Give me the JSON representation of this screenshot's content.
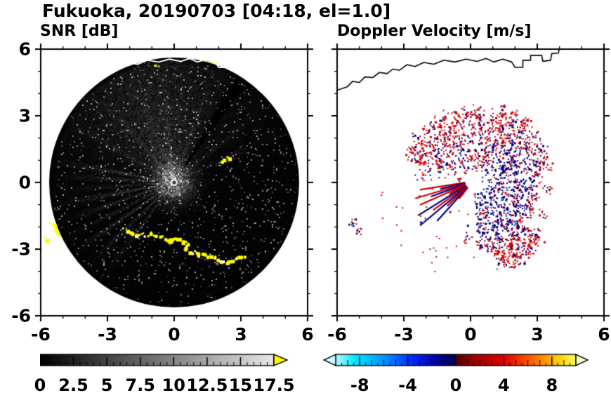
{
  "title": "Fukuoka, 20190703 [04:18, el=1.0]",
  "panels": {
    "snr": {
      "title": "SNR [dB]"
    },
    "doppler": {
      "title": "Doppler Velocity [m/s]"
    }
  },
  "chart_data": [
    {
      "type": "heatmap",
      "subtype": "radar-ppi-scan",
      "title": "SNR [dB]",
      "xlim": [
        -6,
        6
      ],
      "ylim": [
        -6,
        6
      ],
      "xticks": [
        -6,
        -3,
        0,
        3,
        6
      ],
      "yticks": [
        6,
        3,
        0,
        -3,
        -6
      ],
      "minor_tick_step": 1,
      "scan_center": [
        0,
        0
      ],
      "scan_radius": 5.62,
      "beam_ray_azimuths": [
        170,
        177,
        184,
        191,
        199,
        207,
        215,
        224,
        233,
        150,
        130,
        112,
        96,
        70,
        40,
        25
      ],
      "dark_ray_azimuth": 57,
      "colorbar": {
        "min": 0,
        "max": 17.5,
        "tick_labels": [
          0,
          2.5,
          5,
          7.5,
          10,
          12.5,
          15,
          17.5
        ],
        "minor_tick_step": 0.5,
        "scale": "grayscale",
        "start_color": "#000000",
        "end_color": "#e8e8e8",
        "over_arrow_color": "#ffff00"
      },
      "features": {
        "strong_echo_arc": [
          [
            -2.3,
            -2.05
          ],
          [
            -1.9,
            -2.25
          ],
          [
            -1.45,
            -2.35
          ],
          [
            -1.05,
            -2.25
          ],
          [
            -0.6,
            -2.45
          ],
          [
            -0.2,
            -2.55
          ],
          [
            0.2,
            -2.5
          ],
          [
            0.55,
            -2.75
          ],
          [
            0.5,
            -3.05
          ],
          [
            0.9,
            -3.1
          ],
          [
            1.3,
            -3.25
          ],
          [
            1.75,
            -3.3
          ],
          [
            2.1,
            -3.55
          ],
          [
            2.5,
            -3.5
          ],
          [
            2.85,
            -3.35
          ],
          [
            3.1,
            -3.3
          ]
        ],
        "left_edge_echoes": [
          [
            [
              -5.55,
              -1.75
            ],
            [
              -5.4,
              -2.0
            ],
            [
              -5.25,
              -2.3
            ]
          ],
          [
            [
              -5.95,
              -2.35
            ],
            [
              -5.8,
              -2.6
            ]
          ]
        ],
        "upper_echo_dash": [
          [
            2.1,
            1.05
          ],
          [
            2.45,
            1.2
          ]
        ],
        "top_specks": [
          [
            -0.9,
            5.3
          ],
          [
            1.3,
            5.55
          ],
          [
            1.7,
            5.45
          ]
        ]
      }
    },
    {
      "type": "heatmap",
      "subtype": "radar-ppi-scan",
      "title": "Doppler Velocity [m/s]",
      "xlim": [
        -6,
        6
      ],
      "ylim": [
        -6,
        6
      ],
      "xticks": [
        -6,
        -3,
        0,
        3,
        6
      ],
      "yticks": [
        6,
        3,
        0,
        -3,
        -6
      ],
      "minor_tick_step": 1,
      "colorbar": {
        "min": -10,
        "max": 10,
        "tick_labels": [
          -8,
          -4,
          0,
          4,
          8
        ],
        "minor_tick_step": 0.5,
        "under_arrow_color": "#ccffff",
        "over_arrow_color": "#ffffcc",
        "gradient": [
          [
            0.0,
            "#b8f8ff"
          ],
          [
            0.08,
            "#00e6ff"
          ],
          [
            0.2,
            "#0096ff"
          ],
          [
            0.32,
            "#0028ff"
          ],
          [
            0.42,
            "#0000a0"
          ],
          [
            0.499,
            "#000050"
          ],
          [
            0.501,
            "#500000"
          ],
          [
            0.58,
            "#a00000"
          ],
          [
            0.7,
            "#e00000"
          ],
          [
            0.82,
            "#ff6400"
          ],
          [
            0.92,
            "#ffc800"
          ],
          [
            1.0,
            "#ffff55"
          ]
        ]
      },
      "velocity_field": {
        "negative_color": "#000080",
        "positive_color": "#d40000",
        "field_center": [
          0.1,
          0.05
        ],
        "blob_clusters": [
          {
            "x": 0.9,
            "y": -2.85,
            "n": 16,
            "s": 0.3
          },
          {
            "x": 1.6,
            "y": -3.05,
            "n": 18,
            "s": 0.32
          },
          {
            "x": 2.15,
            "y": -3.5,
            "n": 16,
            "s": 0.3
          },
          {
            "x": 2.55,
            "y": -3.0,
            "n": 14,
            "s": 0.28
          },
          {
            "x": 2.9,
            "y": -2.3,
            "n": 12,
            "s": 0.25
          },
          {
            "x": -0.1,
            "y": -2.55,
            "n": 10,
            "s": 0.2
          },
          {
            "x": 0.45,
            "y": -2.8,
            "n": 10,
            "s": 0.2
          },
          {
            "x": 3.3,
            "y": -1.4,
            "n": 10,
            "s": 0.22
          },
          {
            "x": 3.45,
            "y": -0.3,
            "n": 10,
            "s": 0.22
          }
        ],
        "far_left_clusters": [
          {
            "x": -5.3,
            "y": -1.8,
            "n": 12,
            "s": 0.18
          },
          {
            "x": -5.05,
            "y": -2.2,
            "n": 9,
            "s": 0.15
          }
        ],
        "wedge_streaks": [
          {
            "a": 189,
            "r1": 2.4,
            "c": "pos"
          },
          {
            "a": 193,
            "r1": 1.5,
            "c": "neg"
          },
          {
            "a": 196.5,
            "r1": 2.7,
            "c": "pos"
          },
          {
            "a": 200,
            "r1": 2.0,
            "c": "neg"
          },
          {
            "a": 204,
            "r1": 2.6,
            "c": "pos"
          },
          {
            "a": 208,
            "r1": 1.2,
            "c": "pos"
          },
          {
            "a": 212,
            "r1": 2.9,
            "c": "neg"
          },
          {
            "a": 216,
            "r1": 2.2,
            "c": "pos"
          },
          {
            "a": 220,
            "r1": 3.1,
            "c": "neg"
          },
          {
            "a": 224,
            "r1": 1.6,
            "c": "pos"
          },
          {
            "a": 228,
            "r1": 2.4,
            "c": "neg"
          },
          {
            "a": 232,
            "r1": 1.0,
            "c": "pos"
          }
        ]
      }
    }
  ],
  "coastline": [
    [
      -6,
      4.15
    ],
    [
      -5.55,
      4.3
    ],
    [
      -5.3,
      4.55
    ],
    [
      -5.0,
      4.5
    ],
    [
      -4.75,
      4.75
    ],
    [
      -4.4,
      4.72
    ],
    [
      -4.1,
      4.95
    ],
    [
      -3.75,
      4.9
    ],
    [
      -3.5,
      5.1
    ],
    [
      -3.2,
      5.05
    ],
    [
      -2.85,
      5.3
    ],
    [
      -2.5,
      5.22
    ],
    [
      -2.1,
      5.4
    ],
    [
      -1.65,
      5.32
    ],
    [
      -1.2,
      5.5
    ],
    [
      -0.7,
      5.42
    ],
    [
      -0.2,
      5.55
    ],
    [
      0.3,
      5.45
    ],
    [
      0.7,
      5.58
    ],
    [
      1.05,
      5.42
    ],
    [
      1.45,
      5.55
    ],
    [
      1.85,
      5.42
    ],
    [
      2.0,
      5.18
    ],
    [
      2.35,
      5.18
    ],
    [
      2.35,
      5.5
    ],
    [
      2.7,
      5.5
    ],
    [
      2.7,
      5.72
    ],
    [
      3.2,
      5.72
    ],
    [
      3.25,
      5.45
    ],
    [
      3.6,
      5.5
    ],
    [
      3.65,
      5.8
    ],
    [
      3.95,
      5.82
    ],
    [
      4.0,
      6.05
    ]
  ]
}
